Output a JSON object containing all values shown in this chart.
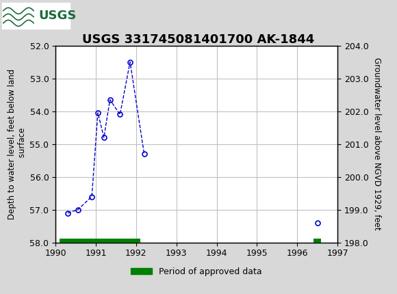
{
  "title": "USGS 331745081401700 AK-1844",
  "ylabel_left": "Depth to water level, feet below land\n surface",
  "ylabel_right": "Groundwater level above NGVD 1929, feet",
  "xlim": [
    1990,
    1997
  ],
  "ylim_left": [
    52.0,
    58.0
  ],
  "ylim_right": [
    198.0,
    204.0
  ],
  "yticks_left": [
    52.0,
    53.0,
    54.0,
    55.0,
    56.0,
    57.0,
    58.0
  ],
  "yticks_right": [
    204.0,
    203.0,
    202.0,
    201.0,
    200.0,
    199.0,
    198.0
  ],
  "ytick_labels_right": [
    "204.0",
    "203.0",
    "202.0",
    "201.0",
    "200.0",
    "199.0",
    "198.0"
  ],
  "xticks": [
    1990,
    1991,
    1992,
    1993,
    1994,
    1995,
    1996,
    1997
  ],
  "connected_x": [
    1990.3,
    1990.55,
    1990.9,
    1991.05,
    1991.2,
    1991.35,
    1991.6,
    1991.85,
    1992.2
  ],
  "connected_y": [
    57.1,
    57.0,
    56.6,
    54.05,
    54.8,
    53.65,
    54.1,
    52.5,
    55.3
  ],
  "isolated_x": [
    1996.5
  ],
  "isolated_y": [
    57.4
  ],
  "line_color": "#0000CC",
  "marker_color": "#0000CC",
  "approved_bars": [
    {
      "x_start": 1990.1,
      "x_end": 1992.1
    },
    {
      "x_start": 1996.4,
      "x_end": 1996.6
    }
  ],
  "approved_bar_color": "#008000",
  "approved_bar_height": 0.12,
  "approved_bar_y_bottom": 57.88,
  "header_color": "#1B6B3A",
  "background_color": "#d8d8d8",
  "plot_bg_color": "#ffffff",
  "grid_color": "#c0c0c0",
  "title_fontsize": 13,
  "axis_label_fontsize": 8.5,
  "tick_fontsize": 9,
  "legend_label": "Period of approved data"
}
